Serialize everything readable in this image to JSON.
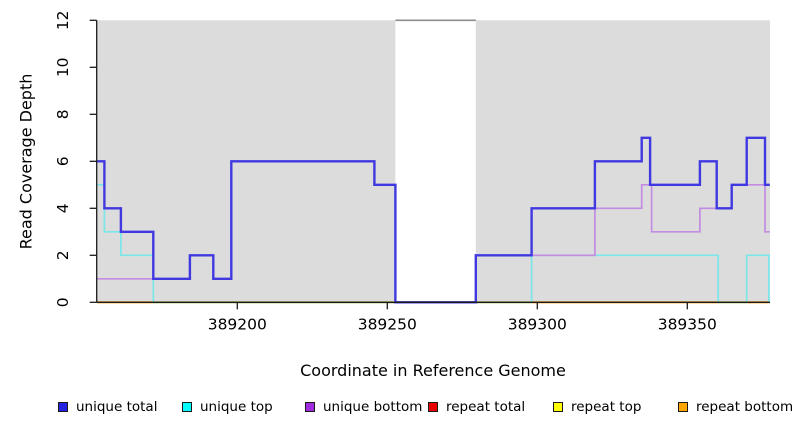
{
  "chart_data": {
    "type": "line",
    "subtype": "step-coverage-plot",
    "title": "",
    "xlabel": "Coordinate in Reference Genome",
    "ylabel": "Read Coverage Depth",
    "x_ticks": [
      389200,
      389250,
      389300,
      389350
    ],
    "y_ticks": [
      0,
      2,
      4,
      6,
      8,
      10,
      12
    ],
    "x_range": [
      389153.3,
      389377.5
    ],
    "ylim": [
      0,
      12
    ],
    "grid": "off",
    "legend_position": "bottom",
    "colors": {
      "plot_background": "#dcdcdc",
      "gap_fill": "#ffffff",
      "gap_border": "#8c8c8c",
      "axis": "#1a1a1a",
      "baseline_blend_green": "#93d69c"
    },
    "gap_regions": [
      {
        "from": 389252.7,
        "to": 389279.5
      }
    ],
    "baseline_blend_segments": [
      {
        "from": 389172.0,
        "to": 389298.1
      },
      {
        "from": 389360.3,
        "to": 389369.8
      }
    ],
    "series": [
      {
        "name": "unique total",
        "color": "#2222e0",
        "line_color": "#4038e0",
        "line_width": 2.4,
        "points": [
          [
            389153.3,
            6
          ],
          [
            389155.7,
            4
          ],
          [
            389161.2,
            3
          ],
          [
            389172,
            1
          ],
          [
            389184.2,
            2
          ],
          [
            389192,
            1
          ],
          [
            389198,
            6
          ],
          [
            389245.7,
            5
          ],
          [
            389252.7,
            0
          ],
          [
            389279.5,
            2
          ],
          [
            389298.1,
            4
          ],
          [
            389319.2,
            6
          ],
          [
            389334.8,
            7
          ],
          [
            389337.6,
            5
          ],
          [
            389354.2,
            6
          ],
          [
            389359.8,
            4
          ],
          [
            389364.8,
            5
          ],
          [
            389369.8,
            7
          ],
          [
            389375.9,
            5
          ]
        ]
      },
      {
        "name": "unique top",
        "color": "#00ffff",
        "line_color": "#7ae6e8",
        "line_width": 1.7,
        "points": [
          [
            389153.3,
            5
          ],
          [
            389155.7,
            3
          ],
          [
            389161.2,
            2
          ],
          [
            389172,
            0
          ],
          [
            389298.1,
            2
          ],
          [
            389360.3,
            0
          ],
          [
            389369.8,
            2
          ],
          [
            389377.2,
            0
          ]
        ]
      },
      {
        "name": "unique bottom",
        "color": "#a22ce0",
        "line_color": "#c18ce2",
        "line_width": 1.7,
        "points": [
          [
            389153.3,
            1
          ],
          [
            389184.2,
            2
          ],
          [
            389192,
            1
          ],
          [
            389198,
            6
          ],
          [
            389245.7,
            5
          ],
          [
            389252.7,
            0
          ],
          [
            389279.5,
            2
          ],
          [
            389319.2,
            4
          ],
          [
            389334.8,
            5
          ],
          [
            389338.1,
            3
          ],
          [
            389354.2,
            4
          ],
          [
            389364.8,
            5
          ],
          [
            389375.9,
            3
          ]
        ]
      },
      {
        "name": "repeat total",
        "color": "#e60000",
        "line_color": "#e60000",
        "line_width": 1.7,
        "points": [
          [
            389153.3,
            0
          ]
        ]
      },
      {
        "name": "repeat top",
        "color": "#ffff00",
        "line_color": "#ffff00",
        "line_width": 1.7,
        "points": [
          [
            389153.3,
            0
          ]
        ]
      },
      {
        "name": "repeat bottom",
        "color": "#ffa500",
        "line_color": "#ff9e14",
        "line_width": 2.0,
        "points": [
          [
            389153.3,
            0
          ]
        ]
      }
    ]
  }
}
